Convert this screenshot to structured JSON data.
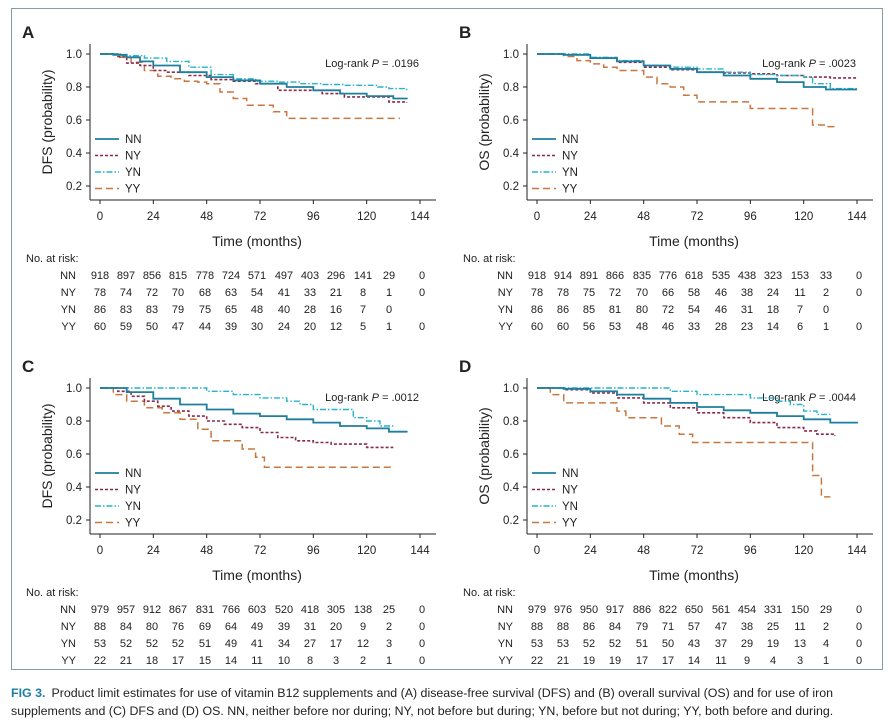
{
  "caption": {
    "label": "FIG 3.",
    "text": "Product limit estimates for use of vitamin B12 supplements and (A) disease-free survival (DFS) and (B) overall survival (OS) and for use of iron supplements and (C) DFS and (D) OS. NN, neither before nor during; NY, not before but during; YN, before but not during; YY, both before and during."
  },
  "colors": {
    "NN": "#1e7f9c",
    "NY": "#8b2a4a",
    "YN": "#27b3c9",
    "YY": "#c8773f"
  },
  "chart_data": [
    {
      "type": "line",
      "panel": "A",
      "ylabel": "DFS (probability)",
      "xlabel": "Time (months)",
      "xlim": [
        0,
        144
      ],
      "ylim": [
        0.1,
        1.0
      ],
      "xticks": [
        0,
        24,
        48,
        72,
        96,
        120,
        144
      ],
      "yticks": [
        1.0,
        0.8,
        0.6,
        0.4,
        0.2
      ],
      "annotation": {
        "prefix": "Log-rank ",
        "p": "P",
        "suffix": " = .0196"
      },
      "legend_position": "left",
      "series": [
        {
          "name": "NN",
          "x": [
            0,
            6,
            12,
            18,
            24,
            36,
            48,
            60,
            72,
            84,
            96,
            108,
            120,
            132,
            138
          ],
          "y": [
            1.0,
            0.995,
            0.98,
            0.955,
            0.93,
            0.89,
            0.86,
            0.84,
            0.82,
            0.8,
            0.78,
            0.76,
            0.745,
            0.73,
            0.725
          ]
        },
        {
          "name": "NY",
          "x": [
            0,
            8,
            12,
            18,
            24,
            30,
            40,
            50,
            60,
            70,
            80,
            90,
            100,
            110,
            120,
            130,
            138
          ],
          "y": [
            1.0,
            0.985,
            0.945,
            0.93,
            0.9,
            0.89,
            0.87,
            0.845,
            0.835,
            0.82,
            0.78,
            0.78,
            0.76,
            0.74,
            0.74,
            0.71,
            0.705
          ]
        },
        {
          "name": "YN",
          "x": [
            0,
            10,
            20,
            30,
            40,
            50,
            60,
            70,
            80,
            90,
            100,
            110,
            120,
            125,
            130,
            138
          ],
          "y": [
            1.0,
            0.99,
            0.975,
            0.955,
            0.92,
            0.875,
            0.85,
            0.835,
            0.83,
            0.82,
            0.815,
            0.81,
            0.81,
            0.8,
            0.79,
            0.78
          ]
        },
        {
          "name": "YY",
          "x": [
            0,
            8,
            14,
            20,
            26,
            32,
            38,
            44,
            48,
            54,
            60,
            66,
            72,
            78,
            84,
            90,
            100,
            110,
            120,
            128,
            135
          ],
          "y": [
            1.0,
            0.98,
            0.95,
            0.9,
            0.865,
            0.85,
            0.835,
            0.83,
            0.82,
            0.77,
            0.73,
            0.69,
            0.69,
            0.65,
            0.61,
            0.61,
            0.61,
            0.61,
            0.61,
            0.61,
            0.61
          ]
        }
      ],
      "risk_table": {
        "title": "No. at risk:",
        "rows": [
          {
            "label": "NN",
            "values": [
              "918",
              "897",
              "856",
              "815",
              "778",
              "724",
              "571",
              "497",
              "403",
              "296",
              "141",
              "29",
              "0"
            ]
          },
          {
            "label": "NY",
            "values": [
              "78",
              "74",
              "72",
              "70",
              "68",
              "63",
              "54",
              "41",
              "33",
              "21",
              "8",
              "1",
              "0"
            ]
          },
          {
            "label": "YN",
            "values": [
              "86",
              "83",
              "83",
              "79",
              "75",
              "65",
              "48",
              "40",
              "28",
              "16",
              "7",
              "0",
              ""
            ]
          },
          {
            "label": "YY",
            "values": [
              "60",
              "59",
              "50",
              "47",
              "44",
              "39",
              "30",
              "24",
              "20",
              "12",
              "5",
              "1",
              "0"
            ]
          }
        ]
      }
    },
    {
      "type": "line",
      "panel": "B",
      "ylabel": "OS (probability)",
      "xlabel": "Time (months)",
      "xlim": [
        0,
        144
      ],
      "ylim": [
        0.1,
        1.0
      ],
      "xticks": [
        0,
        24,
        48,
        72,
        96,
        120,
        144
      ],
      "yticks": [
        1.0,
        0.8,
        0.6,
        0.4,
        0.2
      ],
      "annotation": {
        "prefix": "Log-rank ",
        "p": "P",
        "suffix": " = .0023"
      },
      "legend_position": "left",
      "series": [
        {
          "name": "NN",
          "x": [
            0,
            12,
            24,
            36,
            48,
            60,
            72,
            84,
            96,
            108,
            120,
            130,
            144
          ],
          "y": [
            1.0,
            0.995,
            0.975,
            0.955,
            0.93,
            0.91,
            0.89,
            0.87,
            0.85,
            0.83,
            0.8,
            0.785,
            0.785
          ]
        },
        {
          "name": "NY",
          "x": [
            0,
            12,
            24,
            36,
            48,
            60,
            72,
            84,
            96,
            108,
            120,
            132,
            144
          ],
          "y": [
            1.0,
            0.995,
            0.975,
            0.95,
            0.92,
            0.905,
            0.89,
            0.885,
            0.88,
            0.87,
            0.86,
            0.855,
            0.855
          ]
        },
        {
          "name": "YN",
          "x": [
            0,
            12,
            24,
            36,
            48,
            60,
            72,
            84,
            96,
            108,
            120,
            124,
            132,
            144
          ],
          "y": [
            1.0,
            1.0,
            0.98,
            0.96,
            0.93,
            0.92,
            0.91,
            0.89,
            0.875,
            0.87,
            0.86,
            0.82,
            0.79,
            0.79
          ]
        },
        {
          "name": "YY",
          "x": [
            0,
            12,
            18,
            24,
            30,
            36,
            48,
            54,
            60,
            66,
            72,
            84,
            96,
            108,
            120,
            124,
            130,
            134
          ],
          "y": [
            1.0,
            0.985,
            0.96,
            0.94,
            0.92,
            0.9,
            0.86,
            0.82,
            0.8,
            0.75,
            0.71,
            0.71,
            0.67,
            0.67,
            0.67,
            0.57,
            0.56,
            0.56
          ]
        }
      ],
      "risk_table": {
        "title": "No. at risk:",
        "rows": [
          {
            "label": "NN",
            "values": [
              "918",
              "914",
              "891",
              "866",
              "835",
              "776",
              "618",
              "535",
              "438",
              "323",
              "153",
              "33",
              "0"
            ]
          },
          {
            "label": "NY",
            "values": [
              "78",
              "78",
              "75",
              "72",
              "70",
              "66",
              "58",
              "46",
              "38",
              "24",
              "11",
              "2",
              "0"
            ]
          },
          {
            "label": "YN",
            "values": [
              "86",
              "86",
              "85",
              "81",
              "80",
              "72",
              "54",
              "46",
              "31",
              "18",
              "7",
              "0",
              ""
            ]
          },
          {
            "label": "YY",
            "values": [
              "60",
              "60",
              "56",
              "53",
              "48",
              "46",
              "33",
              "28",
              "23",
              "14",
              "6",
              "1",
              "0"
            ]
          }
        ]
      }
    },
    {
      "type": "line",
      "panel": "C",
      "ylabel": "DFS (probability)",
      "xlabel": "Time (months)",
      "xlim": [
        0,
        144
      ],
      "ylim": [
        0.1,
        1.0
      ],
      "xticks": [
        0,
        24,
        48,
        72,
        96,
        120,
        144
      ],
      "yticks": [
        1.0,
        0.8,
        0.6,
        0.4,
        0.2
      ],
      "annotation": {
        "prefix": "Log-rank ",
        "p": "P",
        "suffix": " = .0012"
      },
      "legend_position": "left",
      "series": [
        {
          "name": "NN",
          "x": [
            0,
            12,
            24,
            36,
            48,
            60,
            72,
            84,
            96,
            108,
            120,
            130,
            138
          ],
          "y": [
            1.0,
            0.975,
            0.935,
            0.9,
            0.87,
            0.845,
            0.83,
            0.81,
            0.79,
            0.77,
            0.755,
            0.735,
            0.73
          ]
        },
        {
          "name": "NY",
          "x": [
            0,
            8,
            14,
            20,
            26,
            32,
            40,
            48,
            56,
            64,
            72,
            80,
            88,
            96,
            104,
            112,
            120,
            132
          ],
          "y": [
            1.0,
            0.98,
            0.95,
            0.92,
            0.89,
            0.86,
            0.83,
            0.8,
            0.78,
            0.76,
            0.73,
            0.7,
            0.68,
            0.67,
            0.66,
            0.66,
            0.64,
            0.64
          ]
        },
        {
          "name": "YN",
          "x": [
            0,
            24,
            48,
            60,
            72,
            84,
            90,
            96,
            108,
            114,
            120,
            126,
            132
          ],
          "y": [
            1.0,
            1.0,
            0.98,
            0.96,
            0.94,
            0.92,
            0.9,
            0.87,
            0.87,
            0.82,
            0.8,
            0.77,
            0.77
          ]
        },
        {
          "name": "YY",
          "x": [
            0,
            6,
            12,
            20,
            28,
            36,
            44,
            50,
            56,
            64,
            70,
            74,
            80,
            96,
            110,
            120,
            132
          ],
          "y": [
            1.0,
            0.96,
            0.92,
            0.88,
            0.85,
            0.81,
            0.75,
            0.68,
            0.68,
            0.63,
            0.58,
            0.52,
            0.52,
            0.52,
            0.52,
            0.52,
            0.52
          ]
        }
      ],
      "risk_table": {
        "title": "No. at risk:",
        "rows": [
          {
            "label": "NN",
            "values": [
              "979",
              "957",
              "912",
              "867",
              "831",
              "766",
              "603",
              "520",
              "418",
              "305",
              "138",
              "25",
              "0"
            ]
          },
          {
            "label": "NY",
            "values": [
              "88",
              "84",
              "80",
              "76",
              "69",
              "64",
              "49",
              "39",
              "31",
              "20",
              "9",
              "2",
              "0"
            ]
          },
          {
            "label": "YN",
            "values": [
              "53",
              "52",
              "52",
              "52",
              "51",
              "49",
              "41",
              "34",
              "27",
              "17",
              "12",
              "3",
              "0"
            ]
          },
          {
            "label": "YY",
            "values": [
              "22",
              "21",
              "18",
              "17",
              "15",
              "14",
              "11",
              "10",
              "8",
              "3",
              "2",
              "1",
              "0"
            ]
          }
        ]
      }
    },
    {
      "type": "line",
      "panel": "D",
      "ylabel": "OS (probability)",
      "xlabel": "Time (months)",
      "xlim": [
        0,
        144
      ],
      "ylim": [
        0.1,
        1.0
      ],
      "xticks": [
        0,
        24,
        48,
        72,
        96,
        120,
        144
      ],
      "yticks": [
        1.0,
        0.8,
        0.6,
        0.4,
        0.2
      ],
      "annotation": {
        "prefix": "Log-rank ",
        "p": "P",
        "suffix": " = .0044"
      },
      "legend_position": "left",
      "series": [
        {
          "name": "NN",
          "x": [
            0,
            12,
            24,
            36,
            48,
            60,
            72,
            84,
            96,
            108,
            120,
            132,
            144
          ],
          "y": [
            1.0,
            0.995,
            0.98,
            0.96,
            0.935,
            0.91,
            0.885,
            0.865,
            0.85,
            0.83,
            0.81,
            0.79,
            0.785
          ]
        },
        {
          "name": "NY",
          "x": [
            0,
            12,
            24,
            36,
            48,
            60,
            72,
            84,
            96,
            108,
            120,
            126,
            134
          ],
          "y": [
            1.0,
            0.99,
            0.97,
            0.94,
            0.91,
            0.88,
            0.85,
            0.82,
            0.79,
            0.76,
            0.74,
            0.72,
            0.71
          ]
        },
        {
          "name": "YN",
          "x": [
            0,
            24,
            48,
            60,
            72,
            84,
            96,
            108,
            114,
            120,
            126,
            132
          ],
          "y": [
            1.0,
            1.0,
            1.0,
            0.98,
            0.96,
            0.96,
            0.94,
            0.92,
            0.9,
            0.86,
            0.84,
            0.84
          ]
        },
        {
          "name": "YY",
          "x": [
            0,
            6,
            12,
            36,
            40,
            48,
            56,
            64,
            70,
            76,
            96,
            120,
            124,
            128,
            132
          ],
          "y": [
            1.0,
            0.96,
            0.91,
            0.86,
            0.82,
            0.82,
            0.77,
            0.72,
            0.67,
            0.67,
            0.67,
            0.67,
            0.47,
            0.34,
            0.34
          ]
        }
      ],
      "risk_table": {
        "title": "No. at risk:",
        "rows": [
          {
            "label": "NN",
            "values": [
              "979",
              "976",
              "950",
              "917",
              "886",
              "822",
              "650",
              "561",
              "454",
              "331",
              "150",
              "29",
              "0"
            ]
          },
          {
            "label": "NY",
            "values": [
              "88",
              "88",
              "86",
              "84",
              "79",
              "71",
              "57",
              "47",
              "38",
              "25",
              "11",
              "2",
              "0"
            ]
          },
          {
            "label": "YN",
            "values": [
              "53",
              "53",
              "52",
              "52",
              "51",
              "50",
              "43",
              "37",
              "29",
              "19",
              "13",
              "4",
              "0"
            ]
          },
          {
            "label": "YY",
            "values": [
              "22",
              "21",
              "19",
              "19",
              "17",
              "17",
              "14",
              "11",
              "9",
              "4",
              "3",
              "1",
              "0"
            ]
          }
        ]
      }
    }
  ]
}
